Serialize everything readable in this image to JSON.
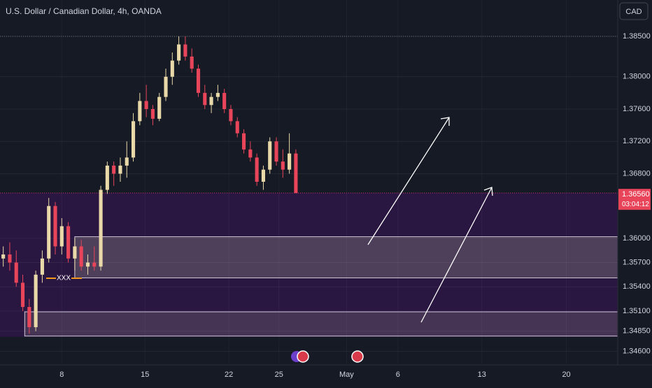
{
  "chart_data": {
    "type": "candlestick",
    "title": "U.S. Dollar / Canadian Dollar, 4h, OANDA",
    "currency_button": "CAD",
    "x": [
      0,
      1,
      2,
      3,
      4,
      5,
      6,
      7,
      8,
      9,
      10,
      11,
      12,
      13,
      14,
      15,
      16,
      17,
      18,
      19,
      20,
      21,
      22,
      23,
      24,
      25,
      26,
      27,
      28,
      29,
      30,
      31,
      32,
      33,
      34,
      35,
      36,
      37,
      38,
      39,
      40,
      41,
      42,
      43,
      44,
      45
    ],
    "open": [
      1.3575,
      1.358,
      1.357,
      1.3545,
      1.3515,
      1.349,
      1.3555,
      1.3575,
      1.364,
      1.359,
      1.3615,
      1.3575,
      1.359,
      1.3565,
      1.357,
      1.3565,
      1.366,
      1.369,
      1.368,
      1.369,
      1.37,
      1.3745,
      1.377,
      1.376,
      1.3748,
      1.3775,
      1.38,
      1.382,
      1.384,
      1.3825,
      1.381,
      1.378,
      1.3765,
      1.3775,
      1.378,
      1.376,
      1.3745,
      1.373,
      1.371,
      1.37,
      1.367,
      1.3685,
      1.372,
      1.3695,
      1.3685,
      1.3705
    ],
    "high": [
      1.359,
      1.3595,
      1.3585,
      1.3555,
      1.3525,
      1.356,
      1.3585,
      1.365,
      1.3645,
      1.3625,
      1.362,
      1.36,
      1.3598,
      1.358,
      1.359,
      1.3665,
      1.3695,
      1.3695,
      1.37,
      1.372,
      1.3755,
      1.378,
      1.379,
      1.3765,
      1.378,
      1.381,
      1.383,
      1.385,
      1.385,
      1.3835,
      1.3815,
      1.379,
      1.378,
      1.379,
      1.3785,
      1.3765,
      1.375,
      1.3735,
      1.372,
      1.3705,
      1.369,
      1.3725,
      1.3725,
      1.371,
      1.373,
      1.371
    ],
    "low": [
      1.3565,
      1.356,
      1.354,
      1.351,
      1.3482,
      1.3485,
      1.3545,
      1.357,
      1.358,
      1.358,
      1.357,
      1.356,
      1.356,
      1.3555,
      1.356,
      1.356,
      1.3655,
      1.3665,
      1.367,
      1.3675,
      1.3695,
      1.374,
      1.375,
      1.374,
      1.3745,
      1.377,
      1.379,
      1.3815,
      1.382,
      1.3805,
      1.3775,
      1.376,
      1.3755,
      1.377,
      1.3755,
      1.374,
      1.3725,
      1.3705,
      1.3695,
      1.3665,
      1.366,
      1.368,
      1.369,
      1.3675,
      1.368,
      1.3656
    ],
    "close": [
      1.358,
      1.357,
      1.3545,
      1.3515,
      1.349,
      1.3555,
      1.3575,
      1.364,
      1.359,
      1.3615,
      1.3575,
      1.359,
      1.3565,
      1.357,
      1.3565,
      1.366,
      1.369,
      1.368,
      1.369,
      1.37,
      1.3745,
      1.377,
      1.376,
      1.3748,
      1.3775,
      1.38,
      1.382,
      1.384,
      1.3825,
      1.381,
      1.378,
      1.3765,
      1.3775,
      1.378,
      1.376,
      1.3745,
      1.373,
      1.371,
      1.37,
      1.367,
      1.3685,
      1.372,
      1.3695,
      1.3685,
      1.3705,
      1.3656
    ],
    "up_color": "#ead9a8",
    "down_color": "#e8445a",
    "xlim": [
      -0.5,
      94.5
    ],
    "xticks": [
      {
        "value": 9.0,
        "label": "8"
      },
      {
        "value": 21.8,
        "label": "15"
      },
      {
        "value": 34.7,
        "label": "22"
      },
      {
        "value": 42.4,
        "label": "25"
      },
      {
        "value": 52.8,
        "label": "May"
      },
      {
        "value": 60.7,
        "label": "6"
      },
      {
        "value": 73.6,
        "label": "13"
      },
      {
        "value": 86.6,
        "label": "20"
      }
    ],
    "ylim": [
      1.3445,
      1.3895
    ],
    "yticks": [
      {
        "value": 1.385,
        "label": "1.38500"
      },
      {
        "value": 1.38,
        "label": "1.38000"
      },
      {
        "value": 1.376,
        "label": "1.37600"
      },
      {
        "value": 1.372,
        "label": "1.37200"
      },
      {
        "value": 1.368,
        "label": "1.36800"
      },
      {
        "value": 1.36,
        "label": "1.36000"
      },
      {
        "value": 1.357,
        "label": "1.35700"
      },
      {
        "value": 1.354,
        "label": "1.35400"
      },
      {
        "value": 1.351,
        "label": "1.35100"
      },
      {
        "value": 1.3485,
        "label": "1.34850"
      },
      {
        "value": 1.346,
        "label": "1.34600"
      }
    ],
    "grid": true,
    "last_price": {
      "value": 1.3656,
      "label": "1.36560"
    },
    "countdown": "03:04:12",
    "zones": [
      {
        "top": 1.36565,
        "bottom": 1.3478,
        "x_start": -0.5,
        "color": "#2b1742"
      },
      {
        "top": 1.3602,
        "bottom": 1.3551,
        "x_start": 11.0,
        "color": "#55465f"
      },
      {
        "top": 1.3509,
        "bottom": 1.3479,
        "x_start": 3.3,
        "color": "#4a3a58"
      }
    ],
    "annotation": "XXX"
  }
}
